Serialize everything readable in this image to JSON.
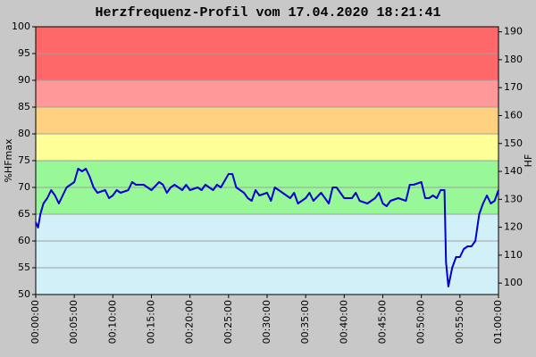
{
  "chart_data": {
    "type": "line",
    "title": "Herzfrequenz-Profil vom 17.04.2020 18:21:41",
    "ylabel": "%HFmax",
    "y2label": "HF",
    "color": "#0000d0",
    "zones": [
      {
        "from": 50,
        "to": 65,
        "color": "#d2f0f8"
      },
      {
        "from": 65,
        "to": 75,
        "color": "#98f898"
      },
      {
        "from": 75,
        "to": 80,
        "color": "#ffff98"
      },
      {
        "from": 80,
        "to": 85,
        "color": "#ffd080"
      },
      {
        "from": 85,
        "to": 90,
        "color": "#ff9898"
      },
      {
        "from": 90,
        "to": 100,
        "color": "#ff6868"
      }
    ],
    "grid": true,
    "xlim": [
      0,
      60
    ],
    "xticks": [
      {
        "value": 0,
        "label": "00:00:00"
      },
      {
        "value": 5,
        "label": "00:05:00"
      },
      {
        "value": 10,
        "label": "00:10:00"
      },
      {
        "value": 15,
        "label": "00:15:00"
      },
      {
        "value": 20,
        "label": "00:20:00"
      },
      {
        "value": 25,
        "label": "00:25:00"
      },
      {
        "value": 30,
        "label": "00:30:00"
      },
      {
        "value": 35,
        "label": "00:35:00"
      },
      {
        "value": 40,
        "label": "00:40:00"
      },
      {
        "value": 45,
        "label": "00:45:00"
      },
      {
        "value": 50,
        "label": "00:50:00"
      },
      {
        "value": 55,
        "label": "00:55:00"
      },
      {
        "value": 60,
        "label": "01:00:00"
      }
    ],
    "ylim": [
      50,
      100
    ],
    "yticks": [
      50,
      55,
      60,
      65,
      70,
      75,
      80,
      85,
      90,
      95,
      100
    ],
    "y2lim": [
      95.9,
      191.8
    ],
    "y2ticks": [
      100,
      110,
      120,
      130,
      140,
      150,
      160,
      170,
      180,
      190
    ],
    "x": [
      0,
      0.3,
      0.6,
      1,
      1.5,
      2,
      2.5,
      3,
      3.5,
      4,
      4.5,
      5,
      5.5,
      6,
      6.5,
      7,
      7.5,
      8,
      9,
      9.5,
      10,
      10.5,
      11,
      12,
      12.5,
      13,
      14,
      15,
      16,
      16.5,
      17,
      17.5,
      18,
      19,
      19.5,
      20,
      21,
      21.5,
      22,
      23,
      23.5,
      24,
      25,
      25.5,
      26,
      27,
      27.5,
      28,
      28.5,
      29,
      30,
      30.5,
      31,
      32,
      33,
      33.5,
      34,
      35,
      35.5,
      36,
      37,
      38,
      38.5,
      39,
      40,
      41,
      41.5,
      42,
      43,
      44,
      44.5,
      45,
      45.5,
      46,
      47,
      48,
      48.5,
      49,
      50,
      50.5,
      51,
      51.5,
      52,
      52.5,
      53,
      53.2,
      53.5,
      54,
      54.5,
      55,
      55.5,
      56,
      56.5,
      57,
      57.5,
      58,
      58.5,
      59,
      59.5,
      60
    ],
    "values": [
      63.5,
      62.5,
      65,
      67,
      68,
      69.5,
      68.5,
      67,
      68.5,
      70,
      70.5,
      71,
      73.5,
      73,
      73.5,
      72,
      70,
      69,
      69.5,
      68,
      68.5,
      69.5,
      69,
      69.5,
      71,
      70.5,
      70.5,
      69.5,
      71,
      70.5,
      69,
      70,
      70.5,
      69.5,
      70.5,
      69.5,
      70,
      69.5,
      70.5,
      69.5,
      70.5,
      70,
      72.5,
      72.5,
      70,
      69,
      68,
      67.5,
      69.5,
      68.5,
      69,
      67.5,
      70,
      69,
      68,
      69,
      67,
      68,
      69,
      67.5,
      69,
      67,
      70,
      70,
      68,
      68,
      69,
      67.5,
      67,
      68,
      69,
      67,
      66.5,
      67.5,
      68,
      67.5,
      70.5,
      70.5,
      71,
      68,
      68,
      68.5,
      68,
      69.5,
      69.5,
      56,
      51.5,
      55,
      57,
      57,
      58.5,
      59,
      59,
      60,
      65,
      67,
      68.5,
      67,
      67.5,
      69.5
    ]
  }
}
